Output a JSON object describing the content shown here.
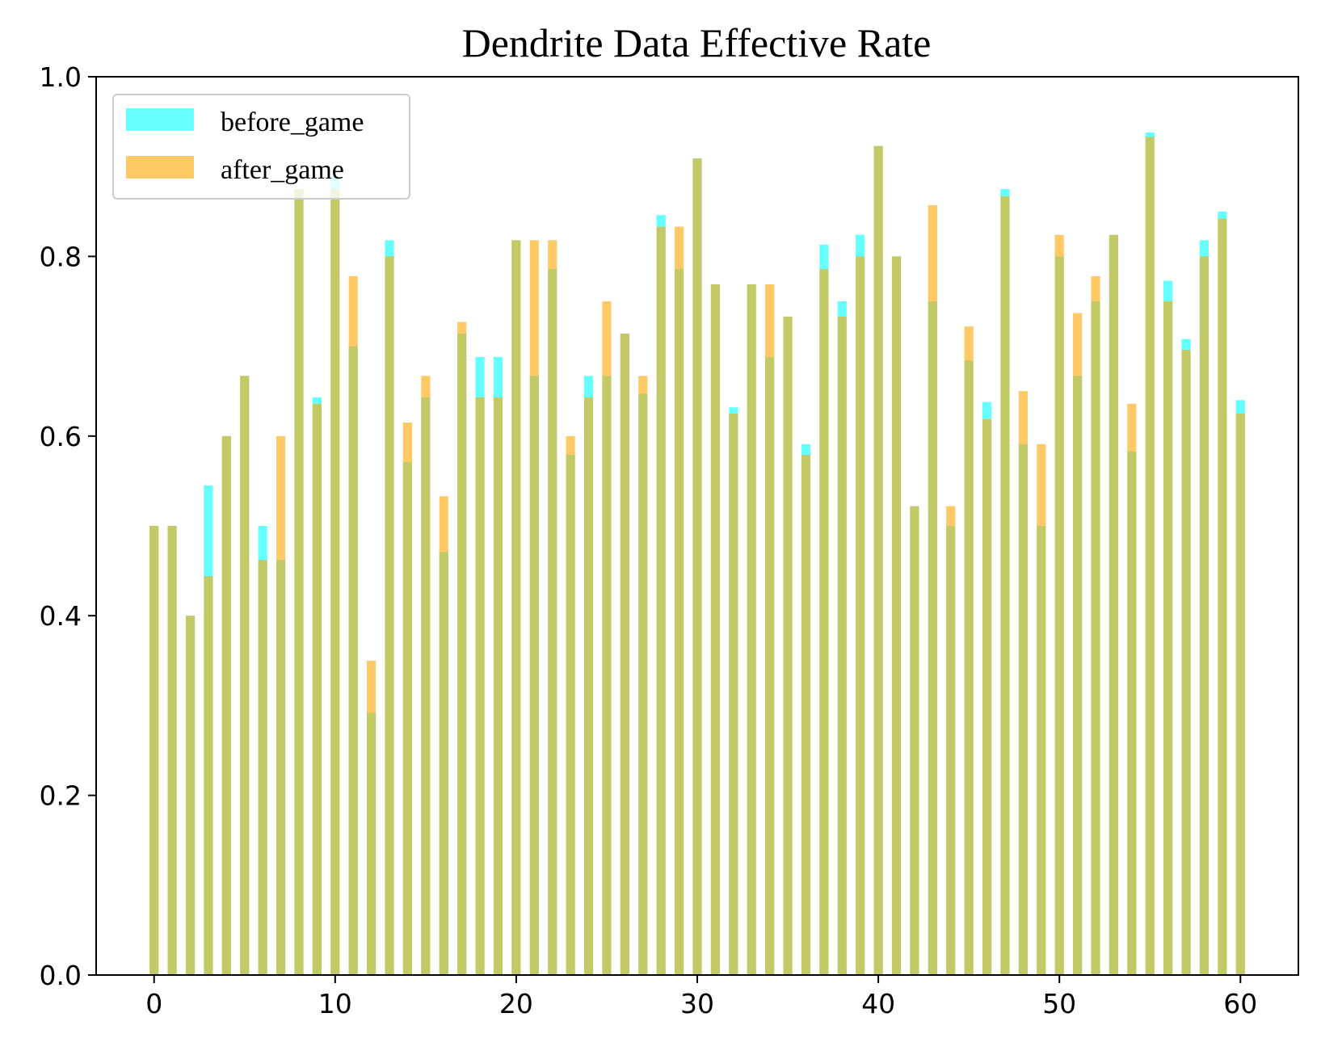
{
  "chart_data": {
    "type": "bar",
    "title": "Dendrite Data Effective Rate",
    "xlabel": "",
    "ylabel": "",
    "xlim": [
      -3.2,
      63.2
    ],
    "ylim": [
      0,
      1.0
    ],
    "xticks": [
      "0",
      "10",
      "20",
      "30",
      "40",
      "50",
      "60"
    ],
    "yticks": [
      "0.0",
      "0.2",
      "0.4",
      "0.6",
      "0.8",
      "1.0"
    ],
    "legend_position": "upper-left",
    "grid": false,
    "x": [
      0,
      1,
      2,
      3,
      4,
      5,
      6,
      7,
      8,
      9,
      10,
      11,
      12,
      13,
      14,
      15,
      16,
      17,
      18,
      19,
      20,
      21,
      22,
      23,
      24,
      25,
      26,
      27,
      28,
      29,
      30,
      31,
      32,
      33,
      34,
      35,
      36,
      37,
      38,
      39,
      40,
      41,
      42,
      43,
      44,
      45,
      46,
      47,
      48,
      49,
      50,
      51,
      52,
      53,
      54,
      55,
      56,
      57,
      58,
      59,
      60
    ],
    "series": [
      {
        "name": "before_game",
        "color": "#00ffff",
        "opacity": 0.6,
        "values": [
          0.5,
          0.5,
          0.4,
          0.545,
          0.6,
          0.667,
          0.5,
          0.462,
          0.875,
          0.643,
          0.889,
          0.7,
          0.292,
          0.818,
          0.571,
          0.643,
          0.471,
          0.714,
          0.688,
          0.688,
          0.818,
          0.667,
          0.786,
          0.579,
          0.667,
          0.667,
          0.714,
          0.647,
          0.846,
          0.786,
          0.909,
          0.769,
          0.632,
          0.769,
          0.688,
          0.733,
          0.591,
          0.813,
          0.75,
          0.824,
          0.923,
          0.8,
          0.522,
          0.75,
          0.5,
          0.684,
          0.638,
          0.875,
          0.591,
          0.5,
          0.8,
          0.667,
          0.75,
          0.824,
          0.583,
          0.938,
          0.773,
          0.708,
          0.818,
          0.85,
          0.64
        ]
      },
      {
        "name": "after_game",
        "color": "#ffa500",
        "opacity": 0.6,
        "values": [
          0.5,
          0.5,
          0.4,
          0.444,
          0.6,
          0.667,
          0.462,
          0.6,
          0.875,
          0.636,
          0.875,
          0.778,
          0.35,
          0.8,
          0.615,
          0.667,
          0.533,
          0.727,
          0.643,
          0.643,
          0.818,
          0.818,
          0.818,
          0.6,
          0.643,
          0.75,
          0.714,
          0.667,
          0.833,
          0.833,
          0.909,
          0.769,
          0.625,
          0.769,
          0.769,
          0.733,
          0.579,
          0.786,
          0.733,
          0.8,
          0.923,
          0.8,
          0.522,
          0.857,
          0.522,
          0.722,
          0.619,
          0.867,
          0.65,
          0.591,
          0.824,
          0.737,
          0.778,
          0.824,
          0.636,
          0.933,
          0.75,
          0.696,
          0.8,
          0.842,
          0.625
        ]
      }
    ]
  }
}
